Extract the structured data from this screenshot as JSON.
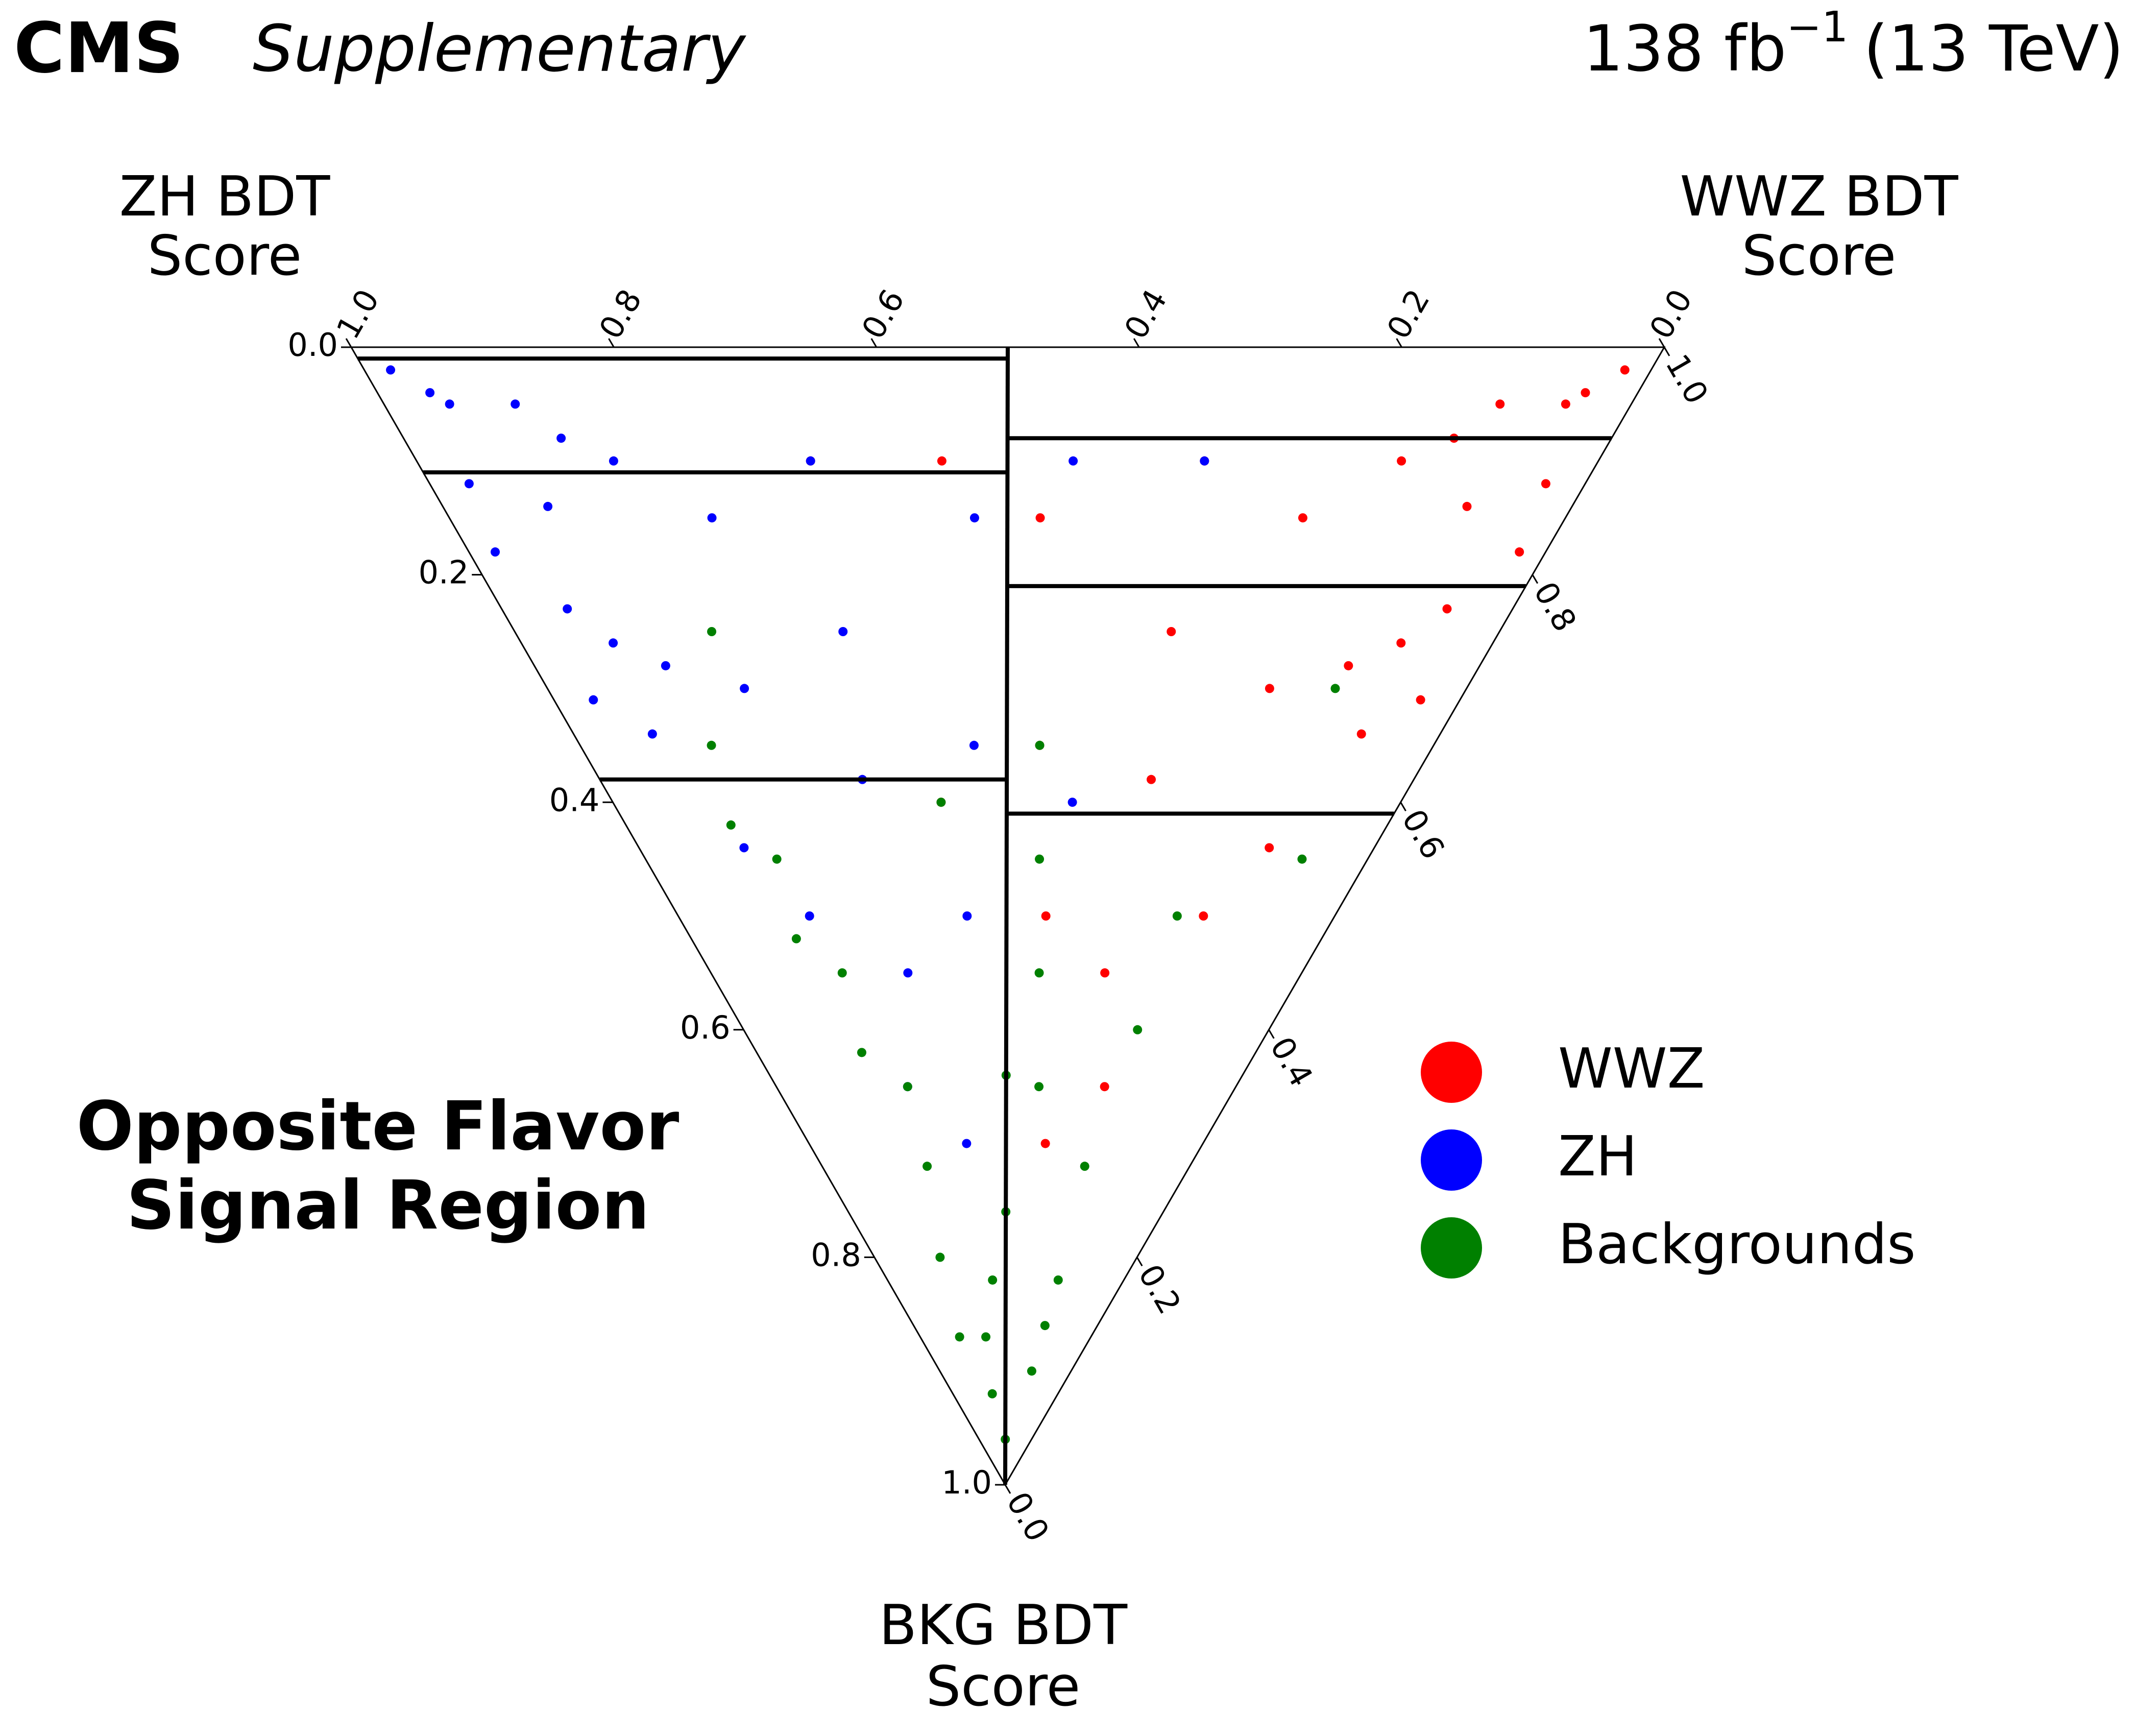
{
  "chart_data": {
    "type": "ternary",
    "experiment": "CMS",
    "status": "Supplementary",
    "lumi": {
      "base": "138 fb",
      "superscript": "−1",
      "suffix": "(13 TeV)"
    },
    "region_label": [
      "Opposite Flavor",
      "Signal Region"
    ],
    "zh_axis_label": [
      "ZH BDT",
      "Score"
    ],
    "wwz_axis_label": [
      "WWZ BDT",
      "Score"
    ],
    "bkg_axis_label": [
      "BKG BDT",
      "Score"
    ],
    "zh_ticks": [
      {
        "value": 0,
        "label": "0.0"
      },
      0.2,
      0.4,
      0.6,
      0.8,
      {
        "value": 1,
        "label": "1.0"
      }
    ],
    "wwz_ticks": [
      {
        "value": 0,
        "label": "0.0"
      },
      0.2,
      0.4,
      0.6,
      0.8,
      {
        "value": 1,
        "label": "1.0"
      }
    ],
    "bkg_ticks": [
      {
        "value": 0,
        "label": "0.0"
      },
      0.2,
      0.4,
      0.6,
      0.8,
      {
        "value": 1,
        "label": "1.0"
      }
    ],
    "zh_side_bkg_cuts": [
      0.01,
      0.11,
      0.38
    ],
    "wwz_side_bkg_cuts": [
      0.08,
      0.21,
      0.41
    ],
    "series": [
      {
        "name": "WWZ",
        "color": "#ff0000",
        "zh": [
          0.02,
          0.05,
          0.1,
          0.03,
          0.08,
          0.15,
          0.05,
          0.2,
          0.1,
          0.3,
          0.06,
          0.15,
          0.25,
          0.08,
          0.4,
          0.2,
          0.1,
          0.3,
          0.15,
          0.5,
          0.1,
          0.22,
          0.6,
          0.12,
          0.35,
          0.04,
          0.12,
          0.02,
          0.07,
          0.03
        ],
        "wwz": [
          0.96,
          0.9,
          0.85,
          0.85,
          0.78,
          0.75,
          0.72,
          0.65,
          0.62,
          0.6,
          0.6,
          0.55,
          0.5,
          0.48,
          0.45,
          0.42,
          0.4,
          0.35,
          0.3,
          0.4,
          0.25,
          0.28,
          0.3,
          0.18,
          0.25,
          0.92,
          0.8,
          0.8,
          0.67,
          0.66
        ],
        "bkg": [
          0.02,
          0.05,
          0.05,
          0.12,
          0.14,
          0.1,
          0.23,
          0.15,
          0.28,
          0.1,
          0.34,
          0.3,
          0.25,
          0.44,
          0.15,
          0.38,
          0.5,
          0.35,
          0.55,
          0.1,
          0.65,
          0.5,
          0.1,
          0.7,
          0.4,
          0.04,
          0.08,
          0.18,
          0.26,
          0.31
        ]
      },
      {
        "name": "ZH",
        "color": "#0000ff",
        "zh": [
          0.96,
          0.9,
          0.85,
          0.85,
          0.78,
          0.75,
          0.72,
          0.65,
          0.62,
          0.6,
          0.6,
          0.55,
          0.5,
          0.48,
          0.45,
          0.42,
          0.4,
          0.35,
          0.3,
          0.4,
          0.25,
          0.28,
          0.3,
          0.18,
          0.25,
          0.92,
          0.8,
          0.8,
          0.67,
          0.66
        ],
        "wwz": [
          0.02,
          0.05,
          0.1,
          0.03,
          0.08,
          0.15,
          0.05,
          0.2,
          0.1,
          0.3,
          0.06,
          0.15,
          0.25,
          0.08,
          0.4,
          0.2,
          0.1,
          0.3,
          0.15,
          0.5,
          0.1,
          0.22,
          0.6,
          0.12,
          0.35,
          0.04,
          0.12,
          0.02,
          0.07,
          0.03
        ],
        "bkg": [
          0.02,
          0.05,
          0.05,
          0.12,
          0.14,
          0.1,
          0.23,
          0.15,
          0.28,
          0.1,
          0.34,
          0.3,
          0.25,
          0.44,
          0.15,
          0.38,
          0.5,
          0.35,
          0.55,
          0.1,
          0.65,
          0.5,
          0.1,
          0.7,
          0.4,
          0.04,
          0.08,
          0.18,
          0.26,
          0.31
        ]
      },
      {
        "name": "Backgrounds",
        "color": "#008000",
        "zh": [
          0.02,
          0.05,
          0.03,
          0.08,
          0.1,
          0.05,
          0.15,
          0.12,
          0.2,
          0.08,
          0.25,
          0.15,
          0.3,
          0.1,
          0.35,
          0.2,
          0.4,
          0.12,
          0.45,
          0.25,
          0.5,
          0.05,
          0.3,
          0.55,
          0.1,
          0.6,
          0.18,
          0.04,
          0.1,
          0.35
        ],
        "wwz": [
          0.02,
          0.03,
          0.07,
          0.05,
          0.08,
          0.13,
          0.05,
          0.12,
          0.08,
          0.2,
          0.1,
          0.2,
          0.08,
          0.3,
          0.1,
          0.25,
          0.08,
          0.38,
          0.1,
          0.3,
          0.08,
          0.5,
          0.35,
          0.1,
          0.6,
          0.15,
          0.18,
          0.1,
          0.03,
          0.25
        ],
        "bkg": [
          0.96,
          0.92,
          0.9,
          0.87,
          0.82,
          0.82,
          0.8,
          0.76,
          0.72,
          0.72,
          0.65,
          0.65,
          0.62,
          0.6,
          0.55,
          0.55,
          0.52,
          0.5,
          0.45,
          0.45,
          0.42,
          0.45,
          0.35,
          0.35,
          0.3,
          0.25,
          0.64,
          0.86,
          0.87,
          0.4
        ]
      }
    ]
  }
}
